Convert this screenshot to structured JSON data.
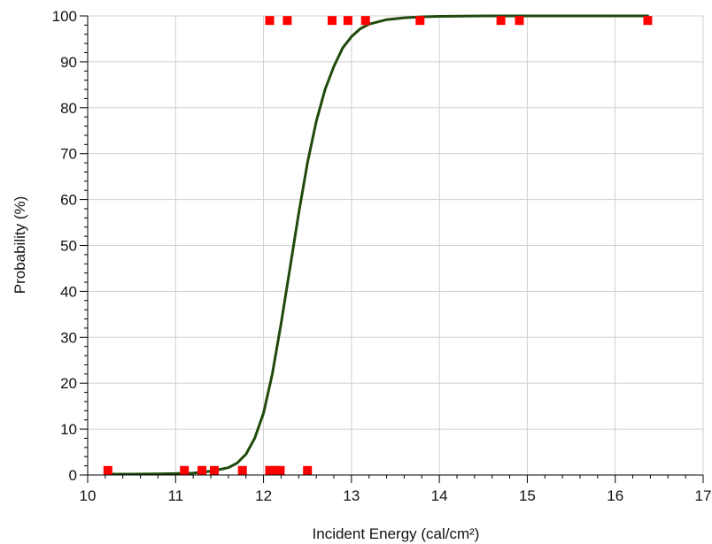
{
  "chart_data": {
    "type": "scatter",
    "xlabel": "Incident Energy (cal/cm²)",
    "ylabel": "Probability (%)",
    "xlim": [
      10,
      17
    ],
    "ylim": [
      0,
      100
    ],
    "x_ticks": [
      10,
      11,
      12,
      13,
      14,
      15,
      16,
      17
    ],
    "y_ticks": [
      0,
      10,
      20,
      30,
      40,
      50,
      60,
      70,
      80,
      90,
      100
    ],
    "grid": true,
    "colors": {
      "points": "#ff0000",
      "curve": "#1f4a0c",
      "grid": "#d0d0d0",
      "axis": "#000000"
    },
    "series": [
      {
        "type": "scatter",
        "x": [
          10.23,
          11.1,
          11.3,
          11.44,
          11.76,
          12.07,
          12.13,
          12.19,
          12.5,
          12.07,
          12.27,
          12.78,
          12.96,
          13.16,
          13.78,
          14.7,
          14.91,
          16.37
        ],
        "y": [
          1,
          1,
          1,
          1,
          1,
          1,
          1,
          1,
          1,
          99,
          99,
          99,
          99,
          99,
          99,
          99,
          99,
          99
        ]
      },
      {
        "type": "line",
        "x": [
          10.23,
          10.5,
          10.8,
          11.0,
          11.2,
          11.4,
          11.6,
          11.7,
          11.8,
          11.9,
          12.0,
          12.1,
          12.2,
          12.3,
          12.4,
          12.5,
          12.6,
          12.7,
          12.8,
          12.9,
          13.0,
          13.1,
          13.2,
          13.4,
          13.6,
          13.8,
          14.0,
          14.5,
          15.0,
          15.5,
          16.0,
          16.37
        ],
        "y": [
          0.2,
          0.2,
          0.25,
          0.3,
          0.4,
          0.8,
          1.6,
          2.6,
          4.5,
          8.0,
          13.5,
          22.0,
          33.0,
          45.0,
          57.0,
          68.0,
          77.0,
          84.0,
          89.0,
          93.0,
          95.5,
          97.2,
          98.2,
          99.2,
          99.6,
          99.8,
          99.9,
          100,
          100,
          100,
          100,
          100
        ]
      }
    ]
  }
}
